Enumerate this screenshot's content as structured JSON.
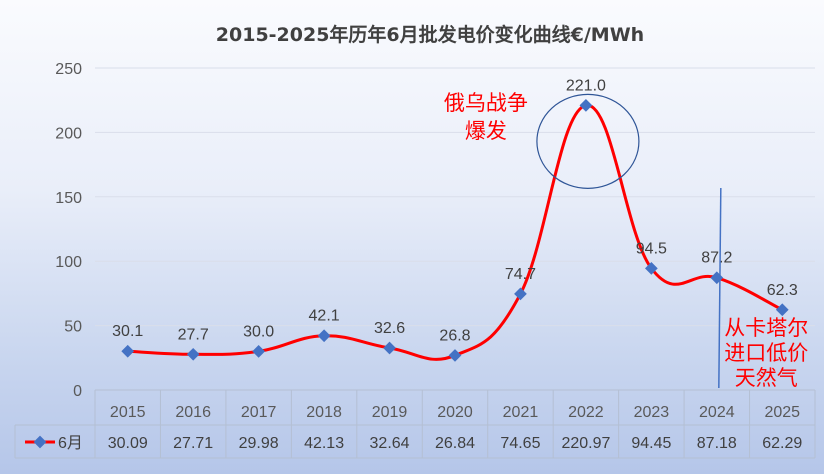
{
  "chart_data": {
    "type": "line",
    "title": "2015-2025年历年6月批发电价变化曲线€/MWh",
    "categories": [
      "2015",
      "2016",
      "2017",
      "2018",
      "2019",
      "2020",
      "2021",
      "2022",
      "2023",
      "2024",
      "2025"
    ],
    "series": [
      {
        "name": "6月",
        "values": [
          30.09,
          27.71,
          29.98,
          42.13,
          32.64,
          26.84,
          74.65,
          220.97,
          94.45,
          87.18,
          62.29
        ],
        "data_labels": [
          "30.1",
          "27.7",
          "30.0",
          "42.1",
          "32.6",
          "26.8",
          "74.7",
          "221.0",
          "94.5",
          "87.2",
          "62.3"
        ],
        "table_values": [
          "30.09",
          "27.71",
          "29.98",
          "42.13",
          "32.64",
          "26.84",
          "74.65",
          "220.97",
          "94.45",
          "87.18",
          "62.29"
        ],
        "color": "#ff0000",
        "marker_color": "#4472c4"
      }
    ],
    "yticks": [
      "0",
      "50",
      "100",
      "150",
      "200",
      "250"
    ],
    "ylim": [
      0,
      250
    ],
    "grid": true,
    "legend": "data-table-bottom",
    "annotations": [
      {
        "text_lines": [
          "俄乌战争",
          "爆发"
        ],
        "target": "2022",
        "color": "#ff0000"
      },
      {
        "text_lines": [
          "从卡塔尔",
          "进口低价",
          "天然气"
        ],
        "target": "2025",
        "color": "#ff0000"
      }
    ]
  }
}
